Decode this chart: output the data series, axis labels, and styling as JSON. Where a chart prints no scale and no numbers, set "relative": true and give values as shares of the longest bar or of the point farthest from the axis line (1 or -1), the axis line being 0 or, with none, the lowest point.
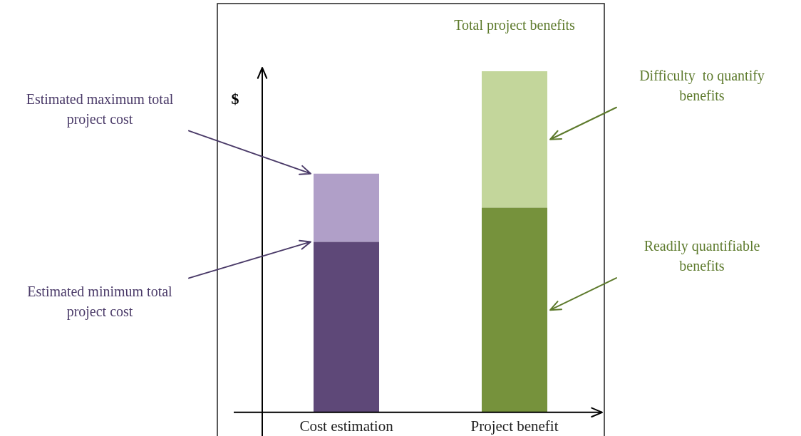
{
  "chart_data": {
    "type": "bar",
    "stacked": true,
    "relative": true,
    "ylabel": "$",
    "categories": [
      "Cost estimation",
      "Project benefit"
    ],
    "series": [
      {
        "colors": [
          "#5e4878",
          "#76923c"
        ],
        "values": [
          0.5,
          0.6
        ]
      },
      {
        "colors": [
          "#b09fc8",
          "#c3d69b"
        ],
        "values": [
          0.2,
          0.4
        ]
      }
    ],
    "annotations": [
      "Estimated maximum total project cost",
      "Estimated minimum total project cost",
      "Total project benefits",
      "Difficulty  to quantify benefits",
      "Readily quantifiable benefits"
    ]
  }
}
